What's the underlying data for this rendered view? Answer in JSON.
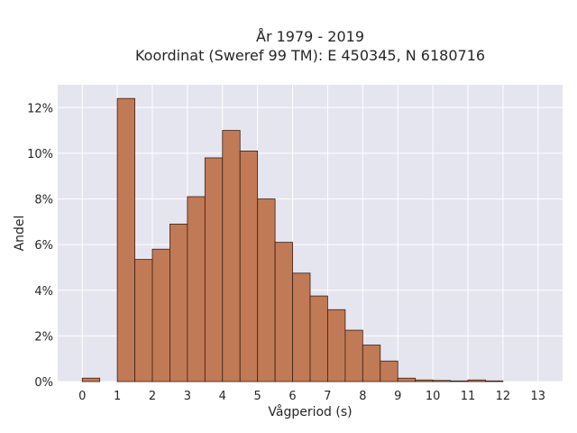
{
  "chart_data": {
    "type": "bar",
    "title": "År 1979 - 2019",
    "subtitle": "Koordinat (Sweref 99 TM): E 450345, N 6180716",
    "xlabel": "Vågperiod (s)",
    "ylabel": "Andel",
    "bin_width": 0.5,
    "bins": [
      {
        "x0": 0.0,
        "x1": 0.5,
        "value": 0.15
      },
      {
        "x0": 1.0,
        "x1": 1.5,
        "value": 12.4
      },
      {
        "x0": 1.5,
        "x1": 2.0,
        "value": 5.35
      },
      {
        "x0": 2.0,
        "x1": 2.5,
        "value": 5.8
      },
      {
        "x0": 2.5,
        "x1": 3.0,
        "value": 6.9
      },
      {
        "x0": 3.0,
        "x1": 3.5,
        "value": 8.1
      },
      {
        "x0": 3.5,
        "x1": 4.0,
        "value": 9.8
      },
      {
        "x0": 4.0,
        "x1": 4.5,
        "value": 11.0
      },
      {
        "x0": 4.5,
        "x1": 5.0,
        "value": 10.1
      },
      {
        "x0": 5.0,
        "x1": 5.5,
        "value": 8.0
      },
      {
        "x0": 5.5,
        "x1": 6.0,
        "value": 6.1
      },
      {
        "x0": 6.0,
        "x1": 6.5,
        "value": 4.75
      },
      {
        "x0": 6.5,
        "x1": 7.0,
        "value": 3.75
      },
      {
        "x0": 7.0,
        "x1": 7.5,
        "value": 3.15
      },
      {
        "x0": 7.5,
        "x1": 8.0,
        "value": 2.25
      },
      {
        "x0": 8.0,
        "x1": 8.5,
        "value": 1.6
      },
      {
        "x0": 8.5,
        "x1": 9.0,
        "value": 0.9
      },
      {
        "x0": 9.0,
        "x1": 9.5,
        "value": 0.15
      },
      {
        "x0": 9.5,
        "x1": 10.0,
        "value": 0.07
      },
      {
        "x0": 10.0,
        "x1": 10.5,
        "value": 0.05
      },
      {
        "x0": 10.5,
        "x1": 11.0,
        "value": 0.03
      },
      {
        "x0": 11.0,
        "x1": 11.5,
        "value": 0.07
      },
      {
        "x0": 11.5,
        "x1": 12.0,
        "value": 0.03
      }
    ],
    "xlim": [
      -0.7,
      13.7
    ],
    "ylim": [
      0,
      13.0
    ],
    "x_ticks": [
      0,
      1,
      2,
      3,
      4,
      5,
      6,
      7,
      8,
      9,
      10,
      11,
      12,
      13
    ],
    "y_ticks": [
      0,
      2,
      4,
      6,
      8,
      10,
      12
    ],
    "y_tick_labels": [
      "0%",
      "2%",
      "4%",
      "6%",
      "8%",
      "10%",
      "12%"
    ],
    "y_unit": "%",
    "grid": true,
    "colors": {
      "bar_fill": "#c17a56",
      "bar_edge": "#3a1f12",
      "plot_bg": "#e5e5ef",
      "grid": "#ffffff"
    }
  }
}
